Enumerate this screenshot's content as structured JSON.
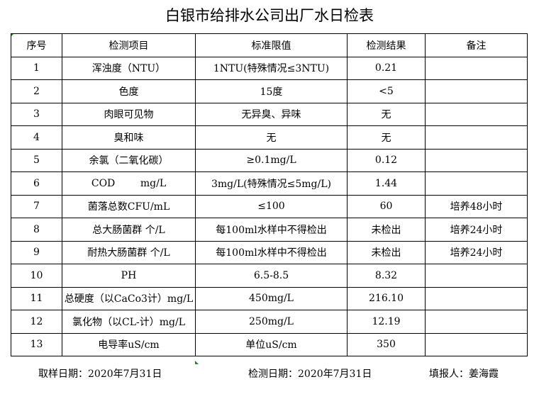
{
  "title": "白银市给排水公司出厂水日检表",
  "headers": [
    "序号",
    "检测项目",
    "标准限值",
    "检测结果",
    "备注"
  ],
  "rows": [
    [
      "1",
      "浑浊度（NTU）",
      "1NTU(特殊情况≤3NTU)",
      "0.21",
      ""
    ],
    [
      "2",
      "色度",
      "15度",
      "<5",
      ""
    ],
    [
      "3",
      "肉眼可见物",
      "无异臭、异味",
      "无",
      ""
    ],
    [
      "4",
      "臭和味",
      "无",
      "无",
      ""
    ],
    [
      "5",
      "余氯（二氧化碳）",
      "≥0.1mg/L",
      "0.12",
      ""
    ],
    [
      "6",
      "COD        mg/L",
      "3mg/L(特殊情况≤5mg/L)",
      "1.44",
      ""
    ],
    [
      "7",
      "菌落总数CFU/mL",
      "≤100",
      "60",
      "培养48小时"
    ],
    [
      "8",
      "总大肠菌群 个/L",
      "每100ml水样中不得检出",
      "未检出",
      "培养24小时"
    ],
    [
      "9",
      "耐热大肠菌群 个/L",
      "每100ml水样中不得检出",
      "未检出",
      "培养24小时"
    ],
    [
      "10",
      "PH",
      "6.5-8.5",
      "8.32",
      ""
    ],
    [
      "11",
      "总硬度（以CaCo3计）mg/L",
      "450mg/L",
      "216.10",
      ""
    ],
    [
      "12",
      "氯化物（以CL-计）mg/L",
      "250mg/L",
      "12.19",
      ""
    ],
    [
      "13",
      "电导率uS/cm",
      "单位uS/cm",
      "350",
      ""
    ]
  ],
  "footer": {
    "sampling_date": "取样日期：2020年7月31日",
    "test_date": "检测日期：2020年7月31日",
    "reporter": "填报人：姜海霞"
  }
}
